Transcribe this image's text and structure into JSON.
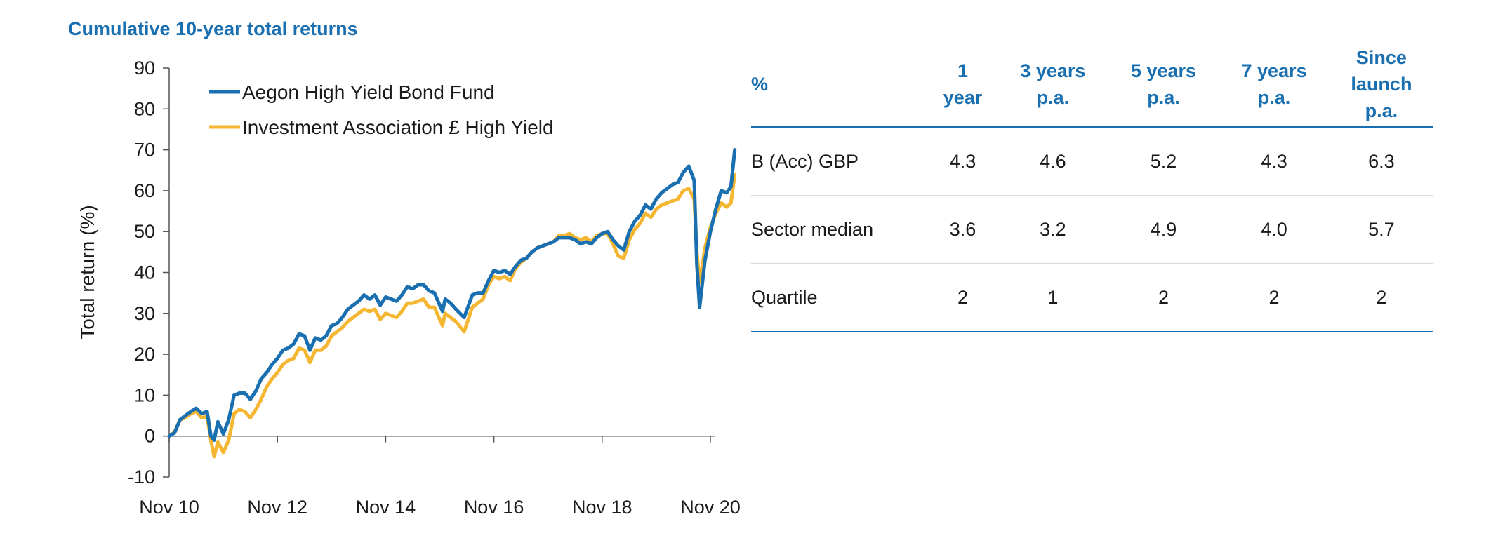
{
  "chart_data": {
    "type": "line",
    "title": "Cumulative 10-year total returns",
    "ylabel": "Total return (%)",
    "xlabel": "",
    "ylim": [
      -10,
      90
    ],
    "yticks": [
      90,
      80,
      70,
      60,
      50,
      40,
      30,
      20,
      10,
      0,
      -10
    ],
    "xlim": [
      0,
      10
    ],
    "xticks": [
      {
        "value": 0,
        "label": "Nov 10"
      },
      {
        "value": 2,
        "label": "Nov 12"
      },
      {
        "value": 4,
        "label": "Nov 14"
      },
      {
        "value": 6,
        "label": "Nov 16"
      },
      {
        "value": 8,
        "label": "Nov 18"
      },
      {
        "value": 10,
        "label": "Nov 20"
      }
    ],
    "legend_position": "top-left",
    "grid": false,
    "series": [
      {
        "name": "Aegon High Yield Bond Fund",
        "color": "#1a6fb0",
        "points": [
          [
            0,
            0
          ],
          [
            0.1,
            0.8
          ],
          [
            0.2,
            4
          ],
          [
            0.3,
            5
          ],
          [
            0.4,
            6
          ],
          [
            0.5,
            6.8
          ],
          [
            0.6,
            5.5
          ],
          [
            0.7,
            6
          ],
          [
            0.77,
            0
          ],
          [
            0.83,
            -1
          ],
          [
            0.9,
            3.5
          ],
          [
            1.0,
            0.5
          ],
          [
            1.1,
            4
          ],
          [
            1.2,
            10
          ],
          [
            1.3,
            10.5
          ],
          [
            1.4,
            10.5
          ],
          [
            1.5,
            9
          ],
          [
            1.6,
            11
          ],
          [
            1.7,
            14
          ],
          [
            1.8,
            15.5
          ],
          [
            1.9,
            17.5
          ],
          [
            2.0,
            19
          ],
          [
            2.1,
            21
          ],
          [
            2.2,
            21.5
          ],
          [
            2.3,
            22.5
          ],
          [
            2.4,
            25
          ],
          [
            2.5,
            24.5
          ],
          [
            2.6,
            21
          ],
          [
            2.7,
            24
          ],
          [
            2.8,
            23.5
          ],
          [
            2.9,
            24.5
          ],
          [
            3.0,
            27
          ],
          [
            3.1,
            27.5
          ],
          [
            3.2,
            29
          ],
          [
            3.3,
            31
          ],
          [
            3.4,
            32
          ],
          [
            3.5,
            33
          ],
          [
            3.6,
            34.5
          ],
          [
            3.7,
            33.5
          ],
          [
            3.8,
            34.5
          ],
          [
            3.9,
            32
          ],
          [
            4.0,
            34
          ],
          [
            4.1,
            33.5
          ],
          [
            4.2,
            33
          ],
          [
            4.3,
            34.5
          ],
          [
            4.4,
            36.5
          ],
          [
            4.5,
            36
          ],
          [
            4.6,
            37
          ],
          [
            4.7,
            37
          ],
          [
            4.8,
            35.5
          ],
          [
            4.9,
            35
          ],
          [
            5.0,
            32
          ],
          [
            5.05,
            30.5
          ],
          [
            5.1,
            33.5
          ],
          [
            5.2,
            32.5
          ],
          [
            5.3,
            31
          ],
          [
            5.45,
            29
          ],
          [
            5.6,
            34.5
          ],
          [
            5.7,
            35
          ],
          [
            5.8,
            35
          ],
          [
            5.9,
            38
          ],
          [
            6.0,
            40.5
          ],
          [
            6.1,
            40
          ],
          [
            6.2,
            40.5
          ],
          [
            6.3,
            39.5
          ],
          [
            6.4,
            41.5
          ],
          [
            6.5,
            43
          ],
          [
            6.6,
            43.5
          ],
          [
            6.7,
            45
          ],
          [
            6.8,
            46
          ],
          [
            6.9,
            46.5
          ],
          [
            7.0,
            47
          ],
          [
            7.1,
            47.5
          ],
          [
            7.2,
            48.5
          ],
          [
            7.3,
            48.5
          ],
          [
            7.4,
            48.5
          ],
          [
            7.5,
            48
          ],
          [
            7.6,
            47
          ],
          [
            7.7,
            47.5
          ],
          [
            7.8,
            47
          ],
          [
            7.9,
            48.5
          ],
          [
            8.0,
            49.5
          ],
          [
            8.1,
            50
          ],
          [
            8.2,
            48
          ],
          [
            8.3,
            46.5
          ],
          [
            8.4,
            45.5
          ],
          [
            8.5,
            50
          ],
          [
            8.6,
            52.5
          ],
          [
            8.7,
            54
          ],
          [
            8.8,
            56.5
          ],
          [
            8.9,
            55.5
          ],
          [
            9.0,
            58
          ],
          [
            9.1,
            59.5
          ],
          [
            9.2,
            60.5
          ],
          [
            9.3,
            61.5
          ],
          [
            9.4,
            62
          ],
          [
            9.5,
            64.5
          ],
          [
            9.6,
            66
          ],
          [
            9.7,
            62.5
          ],
          [
            9.75,
            42
          ],
          [
            9.8,
            31.5
          ],
          [
            9.9,
            43
          ],
          [
            10.0,
            50
          ],
          [
            10.1,
            55.5
          ],
          [
            10.2,
            60
          ],
          [
            10.3,
            59.5
          ],
          [
            10.38,
            61
          ],
          [
            10.45,
            70
          ]
        ]
      },
      {
        "name": "Investment Association £ High Yield",
        "color": "#f5b731",
        "points": [
          [
            0,
            0
          ],
          [
            0.1,
            1
          ],
          [
            0.2,
            4
          ],
          [
            0.3,
            4.5
          ],
          [
            0.4,
            5.5
          ],
          [
            0.5,
            6
          ],
          [
            0.6,
            4.5
          ],
          [
            0.7,
            4.8
          ],
          [
            0.77,
            -1
          ],
          [
            0.83,
            -5
          ],
          [
            0.9,
            -1.5
          ],
          [
            1.0,
            -4
          ],
          [
            1.1,
            -1
          ],
          [
            1.2,
            5.5
          ],
          [
            1.3,
            6.5
          ],
          [
            1.4,
            6
          ],
          [
            1.5,
            4.5
          ],
          [
            1.6,
            6.5
          ],
          [
            1.7,
            9
          ],
          [
            1.8,
            12
          ],
          [
            1.9,
            14
          ],
          [
            2.0,
            15.5
          ],
          [
            2.1,
            17.5
          ],
          [
            2.2,
            18.5
          ],
          [
            2.3,
            19
          ],
          [
            2.4,
            21.5
          ],
          [
            2.5,
            21
          ],
          [
            2.6,
            18
          ],
          [
            2.7,
            21
          ],
          [
            2.8,
            21
          ],
          [
            2.9,
            22
          ],
          [
            3.0,
            24.5
          ],
          [
            3.1,
            25.5
          ],
          [
            3.2,
            26.5
          ],
          [
            3.3,
            28
          ],
          [
            3.4,
            29
          ],
          [
            3.5,
            30
          ],
          [
            3.6,
            31
          ],
          [
            3.7,
            30.5
          ],
          [
            3.8,
            31
          ],
          [
            3.9,
            28.5
          ],
          [
            4.0,
            30
          ],
          [
            4.1,
            29.5
          ],
          [
            4.2,
            29
          ],
          [
            4.3,
            30.5
          ],
          [
            4.4,
            32.5
          ],
          [
            4.5,
            32.5
          ],
          [
            4.6,
            33
          ],
          [
            4.7,
            33.5
          ],
          [
            4.8,
            31.5
          ],
          [
            4.9,
            31.5
          ],
          [
            5.0,
            28.5
          ],
          [
            5.05,
            27
          ],
          [
            5.1,
            30
          ],
          [
            5.2,
            29
          ],
          [
            5.3,
            28
          ],
          [
            5.45,
            25.5
          ],
          [
            5.6,
            31.5
          ],
          [
            5.7,
            32.5
          ],
          [
            5.8,
            33.5
          ],
          [
            5.9,
            37
          ],
          [
            6.0,
            39
          ],
          [
            6.1,
            38.5
          ],
          [
            6.2,
            39
          ],
          [
            6.3,
            38
          ],
          [
            6.4,
            41
          ],
          [
            6.5,
            42.5
          ],
          [
            6.6,
            43.5
          ],
          [
            6.7,
            45
          ],
          [
            6.8,
            46
          ],
          [
            6.9,
            46.5
          ],
          [
            7.0,
            47
          ],
          [
            7.1,
            47.5
          ],
          [
            7.2,
            49
          ],
          [
            7.3,
            49
          ],
          [
            7.4,
            49.5
          ],
          [
            7.5,
            48.5
          ],
          [
            7.6,
            48
          ],
          [
            7.7,
            48.5
          ],
          [
            7.8,
            47.5
          ],
          [
            7.9,
            49
          ],
          [
            8.0,
            49.5
          ],
          [
            8.1,
            49.5
          ],
          [
            8.2,
            47
          ],
          [
            8.3,
            44
          ],
          [
            8.4,
            43.5
          ],
          [
            8.5,
            48
          ],
          [
            8.6,
            50.5
          ],
          [
            8.7,
            52
          ],
          [
            8.8,
            54.5
          ],
          [
            8.9,
            53.5
          ],
          [
            9.0,
            55.5
          ],
          [
            9.1,
            56.5
          ],
          [
            9.2,
            57
          ],
          [
            9.3,
            57.5
          ],
          [
            9.4,
            58
          ],
          [
            9.5,
            60
          ],
          [
            9.6,
            60.5
          ],
          [
            9.7,
            58
          ],
          [
            9.75,
            45
          ],
          [
            9.8,
            37.5
          ],
          [
            9.9,
            46
          ],
          [
            10.0,
            51
          ],
          [
            10.1,
            54.5
          ],
          [
            10.2,
            57
          ],
          [
            10.3,
            56
          ],
          [
            10.38,
            57
          ],
          [
            10.45,
            64
          ]
        ]
      }
    ]
  },
  "table": {
    "header": [
      {
        "line1": "%",
        "line2": "",
        "line3": ""
      },
      {
        "line1": "1",
        "line2": "year",
        "line3": ""
      },
      {
        "line1": "3 years",
        "line2": "p.a.",
        "line3": ""
      },
      {
        "line1": "5 years",
        "line2": "p.a.",
        "line3": ""
      },
      {
        "line1": "7 years",
        "line2": "p.a.",
        "line3": ""
      },
      {
        "line1": "Since",
        "line2": "launch",
        "line3": "p.a."
      }
    ],
    "rows": [
      [
        "B (Acc) GBP",
        "4.3",
        "4.6",
        "5.2",
        "4.3",
        "6.3"
      ],
      [
        "Sector median",
        "3.6",
        "3.2",
        "4.9",
        "4.0",
        "5.7"
      ],
      [
        "Quartile",
        "2",
        "1",
        "2",
        "2",
        "2"
      ]
    ],
    "header_color": "#1a6fb0"
  }
}
